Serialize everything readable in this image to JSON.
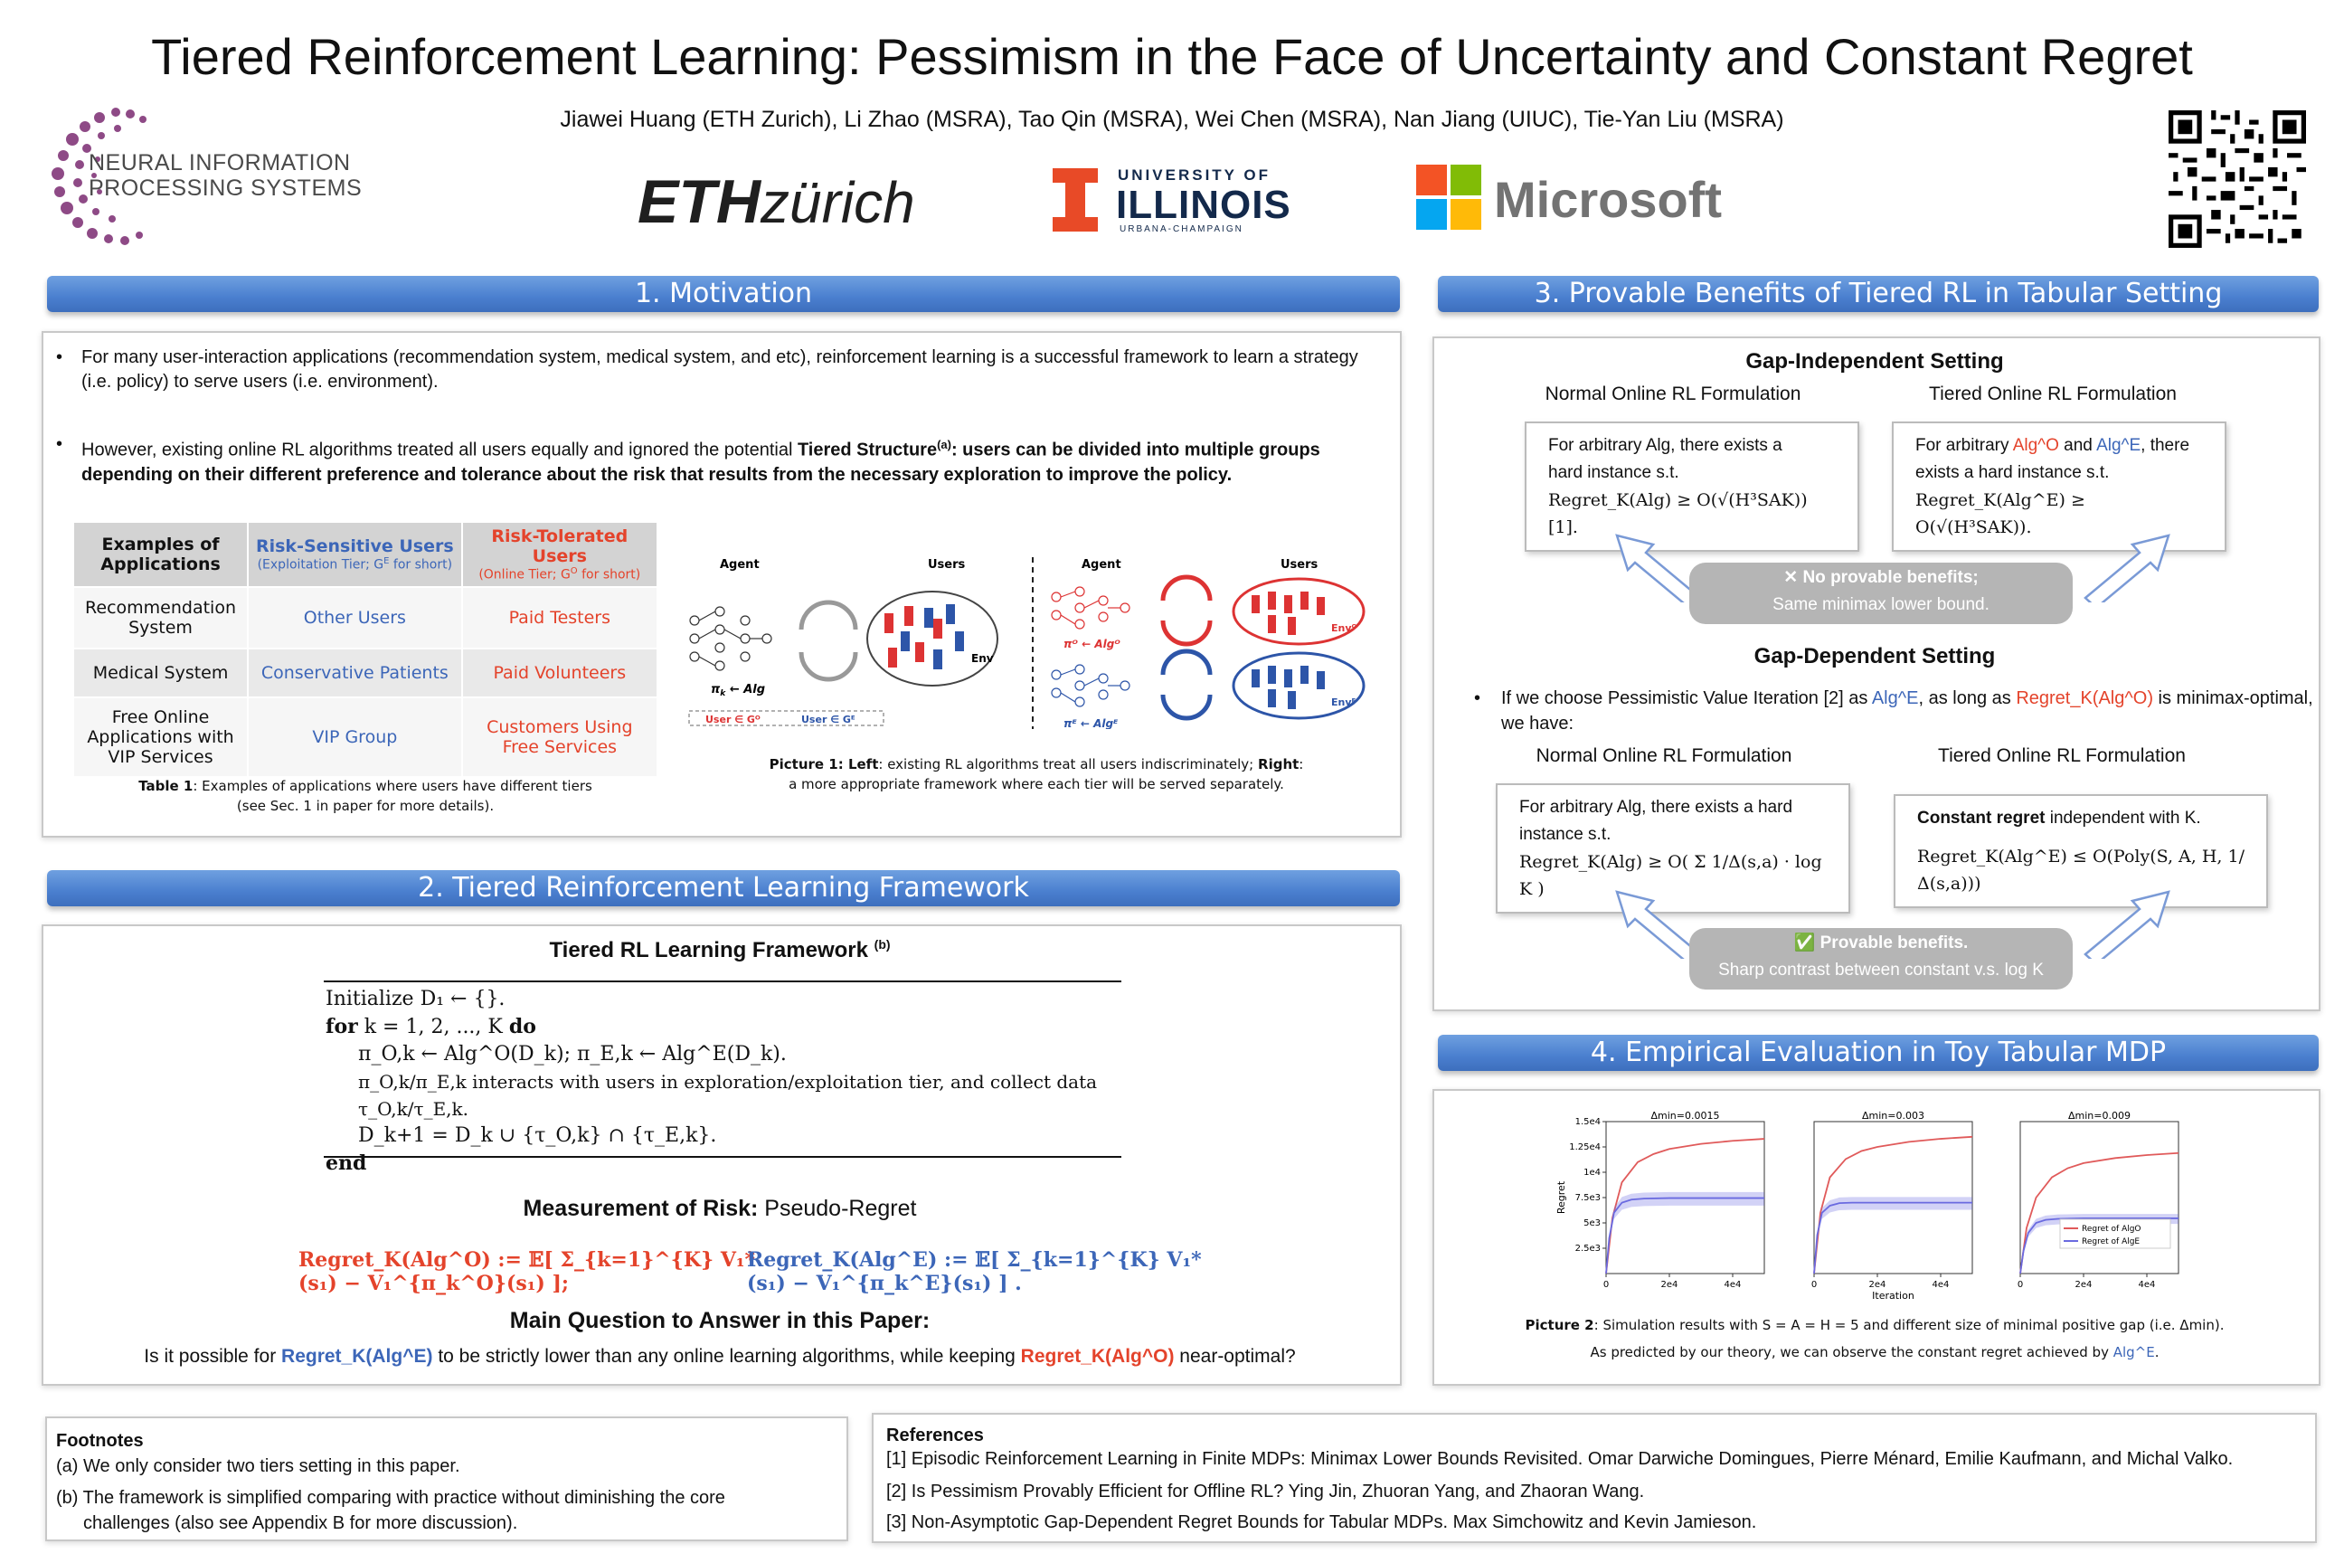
{
  "header": {
    "title": "Tiered Reinforcement Learning: Pessimism in the Face of Uncertainty and Constant Regret",
    "authors": "Jiawei Huang (ETH Zurich), Li Zhao (MSRA), Tao Qin (MSRA), Wei Chen (MSRA), Nan Jiang (UIUC), Tie-Yan Liu (MSRA)",
    "logos": {
      "neurips_line1": "NEURAL INFORMATION",
      "neurips_line2": "PROCESSING SYSTEMS",
      "eth_bold": "ETH",
      "eth_italic": "zürich",
      "illinois_top": "UNIVERSITY OF",
      "illinois_main": "ILLINOIS",
      "illinois_bottom": "URBANA-CHAMPAIGN",
      "microsoft": "Microsoft"
    }
  },
  "sec1": {
    "header": "1. Motivation",
    "bullet1": "For many user-interaction applications (recommendation system, medical system, and etc), reinforcement learning is a successful framework to learn a strategy (i.e. policy) to serve users (i.e. environment).",
    "bullet2_prefix": "However, existing online RL algorithms treated all users equally and ignored the potential ",
    "bullet2_bold1": "Tiered Structure",
    "bullet2_sup": "(a)",
    "bullet2_bold2": ": users can be divided into multiple groups depending on their different preference and tolerance about the risk that results from the necessary exploration to improve the policy.",
    "table": {
      "col0": "Examples of Applications",
      "col1": "Risk-Sensitive Users",
      "col1_sub": "(Exploitation Tier; G",
      "col1_sub_sup": "E",
      "col1_sub_end": " for short)",
      "col2": "Risk-Tolerated Users",
      "col2_sub": "(Online Tier; G",
      "col2_sub_sup": "O",
      "col2_sub_end": " for short)",
      "rows": [
        {
          "app": "Recommendation System",
          "sens": "Other Users",
          "tol": "Paid Testers"
        },
        {
          "app": "Medical System",
          "sens": "Conservative Patients",
          "tol": "Paid Volunteers"
        },
        {
          "app": "Free Online Applications with VIP Services",
          "sens": "VIP Group",
          "tol": "Customers Using Free Services"
        }
      ],
      "caption_bold": "Table 1",
      "caption": ": Examples of applications where users have different tiers",
      "caption2": "(see Sec. 1 in paper for more details)."
    },
    "figure": {
      "agent": "Agent",
      "users": "Users",
      "env": "Env",
      "policy": "π",
      "arrow_alg": "← Alg",
      "user_o": "User ∈ G",
      "user_e": "User ∈ G",
      "caption_bold1": "Picture 1: Left",
      "caption1": ": existing RL algorithms treat all users indiscriminately; ",
      "caption_bold2": "Right",
      "caption2": ": a more appropriate framework where each tier will be served separately."
    }
  },
  "sec2": {
    "header": "2. Tiered Reinforcement Learning Framework",
    "framework_title": "Tiered RL Learning Framework",
    "framework_sup": "(b)",
    "algo": {
      "l1": "Initialize D₁ ← {}.",
      "l2_kw": "for",
      "l2": " k = 1, 2, ..., K ",
      "l2_kw2": "do",
      "l3": "π_O,k ← Alg^O(D_k); π_E,k ← Alg^E(D_k).",
      "l4": "π_O,k/π_E,k interacts with users in exploration/exploitation tier, and collect data τ_O,k/τ_E,k.",
      "l5": "D_k+1 = D_k ∪ {τ_O,k} ∩ {τ_E,k}.",
      "l6": "end"
    },
    "risk_title_bold": "Measurement of Risk:",
    "risk_title": " Pseudo-Regret",
    "regret_o": "Regret_K(Alg^O) := 𝔼[ Σ_{k=1}^{K} V₁*(s₁) − V₁^{π_k^O}(s₁) ];",
    "regret_e": "Regret_K(Alg^E) := 𝔼[ Σ_{k=1}^{K} V₁*(s₁) − V₁^{π_k^E}(s₁) ] .",
    "question_title": "Main Question to Answer in this Paper:",
    "question_pre": "Is it possible for ",
    "question_e": "Regret_K(Alg^E)",
    "question_mid": " to be strictly lower than any online learning algorithms, while keeping ",
    "question_o": "Regret_K(Alg^O)",
    "question_end": " near-optimal?"
  },
  "sec3": {
    "header": "3. Provable Benefits of Tiered RL in Tabular Setting",
    "gap_indep": "Gap-Independent Setting",
    "normal": "Normal Online RL Formulation",
    "tiered": "Tiered Online RL Formulation",
    "box1_l1": "For arbitrary Alg, there exists a",
    "box1_l2": "hard instance s.t.",
    "box1_l3": "Regret_K(Alg) ≥ O(√(H³SAK)) [1].",
    "box2_l1_pre": "For arbitrary ",
    "box2_algo": "Alg^O",
    "box2_and": " and ",
    "box2_alge": "Alg^E",
    "box2_l1_post": ", there",
    "box2_l2": "exists a hard instance s.t.",
    "box2_l3": "Regret_K(Alg^E) ≥ O(√(H³SAK)).",
    "bar1_l1": "✕ No provable benefits;",
    "bar1_l2": "Same minimax lower bound.",
    "gap_dep": "Gap-Dependent Setting",
    "dep_bullet_pre": "If we choose Pessimistic Value Iteration [2] as ",
    "dep_bullet_alge": "Alg^E",
    "dep_bullet_mid": ", as long as ",
    "dep_bullet_reg": "Regret_K(Alg^O)",
    "dep_bullet_end": " is minimax-optimal, we have:",
    "box3_l1": "For arbitrary Alg, there exists a hard",
    "box3_l2": "instance s.t.",
    "box3_l3": "Regret_K(Alg) ≥ O( Σ 1/Δ(s,a) · log K )",
    "box4_bold": "Constant regret",
    "box4_l1": " independent with K.",
    "box4_l3": "Regret_K(Alg^E) ≤ O(Poly(S, A, H, 1/Δ(s,a)))",
    "bar2_l1": "✅ Provable benefits.",
    "bar2_l2": "Sharp contrast between constant v.s. log K"
  },
  "sec4": {
    "header": "4. Empirical Evaluation in Toy Tabular MDP",
    "caption_bold": "Picture 2",
    "caption": ": Simulation results with S = A = H = 5 and different size of minimal positive gap (i.e. Δmin).",
    "caption2_pre": "As predicted by our theory, we can observe the constant regret achieved by ",
    "caption2_alg": "Alg^E",
    "caption2_end": "."
  },
  "chart_data": [
    {
      "type": "line",
      "title": "Δmin=0.0015",
      "ylabel": "Regret",
      "xlabel": "",
      "x_ticks": [
        "0",
        "2e4",
        "4e4"
      ],
      "y_ticks": [
        "2.5e3",
        "5e3",
        "7.5e3",
        "1e4",
        "1.25e4",
        "1.5e4"
      ],
      "xlim": [
        0,
        50000
      ],
      "ylim": [
        0,
        15000
      ],
      "series": [
        {
          "name": "",
          "color": "#e05a5a",
          "x": [
            0,
            2000,
            5000,
            10000,
            15000,
            20000,
            30000,
            40000,
            50000
          ],
          "values": [
            0,
            5500,
            9000,
            11000,
            11800,
            12300,
            12800,
            13100,
            13300
          ]
        },
        {
          "name": "",
          "color": "#6a6ae0",
          "x": [
            0,
            1000,
            2500,
            5000,
            8000,
            12000,
            20000,
            30000,
            40000,
            50000
          ],
          "values": [
            0,
            3500,
            6000,
            7000,
            7300,
            7400,
            7450,
            7450,
            7450,
            7450
          ]
        }
      ]
    },
    {
      "type": "line",
      "title": "Δmin=0.003",
      "ylabel": "",
      "xlabel": "Iteration",
      "x_ticks": [
        "0",
        "2e4",
        "4e4"
      ],
      "xlim": [
        0,
        50000
      ],
      "ylim": [
        0,
        15000
      ],
      "series": [
        {
          "name": "",
          "color": "#e05a5a",
          "x": [
            0,
            2000,
            5000,
            10000,
            15000,
            20000,
            30000,
            40000,
            50000
          ],
          "values": [
            0,
            6000,
            9500,
            11300,
            12100,
            12500,
            13000,
            13300,
            13500
          ]
        },
        {
          "name": "",
          "color": "#6a6ae0",
          "x": [
            0,
            1000,
            2500,
            5000,
            8000,
            12000,
            20000,
            30000,
            40000,
            50000
          ],
          "values": [
            0,
            3800,
            6000,
            6700,
            6950,
            7000,
            7000,
            7000,
            7000,
            7000
          ]
        }
      ]
    },
    {
      "type": "line",
      "title": "Δmin=0.009",
      "ylabel": "",
      "xlabel": "",
      "x_ticks": [
        "0",
        "2e4",
        "4e4"
      ],
      "xlim": [
        0,
        50000
      ],
      "ylim": [
        0,
        15000
      ],
      "series": [
        {
          "name": "Regret of AlgO",
          "color": "#e05a5a",
          "x": [
            0,
            2000,
            5000,
            10000,
            15000,
            20000,
            30000,
            40000,
            50000
          ],
          "values": [
            0,
            4500,
            7500,
            9500,
            10400,
            10900,
            11400,
            11700,
            11900
          ]
        },
        {
          "name": "Regret of AlgE",
          "color": "#6a6ae0",
          "x": [
            0,
            1000,
            2500,
            5000,
            8000,
            12000,
            20000,
            30000,
            40000,
            50000
          ],
          "values": [
            0,
            2200,
            4000,
            5000,
            5300,
            5400,
            5450,
            5450,
            5450,
            5450
          ]
        }
      ]
    }
  ],
  "footnotes": {
    "title": "Footnotes",
    "a": "(a) We only consider two tiers setting in this paper.",
    "b1": "(b) The framework is simplified comparing with practice without diminishing the core",
    "b2": "challenges (also see Appendix B for more discussion)."
  },
  "references": {
    "title": "References",
    "r1": "[1] Episodic Reinforcement Learning in Finite MDPs: Minimax Lower Bounds Revisited. Omar Darwiche Domingues, Pierre Ménard, Emilie Kaufmann, and Michal Valko.",
    "r2": "[2] Is Pessimism Provably Efficient for Offline RL? Ying Jin, Zhuoran Yang, and Zhaoran Wang.",
    "r3": "[3] Non-Asymptotic Gap-Dependent Regret Bounds for Tabular MDPs. Max Simchowitz and Kevin Jamieson."
  },
  "colors": {
    "header_blue": "#4a7fcf",
    "red": "#e4432b",
    "blue": "#3c66b8",
    "illinois_orange": "#e84a27",
    "illinois_navy": "#13294b",
    "neurips_purple": "#8e4a86"
  }
}
